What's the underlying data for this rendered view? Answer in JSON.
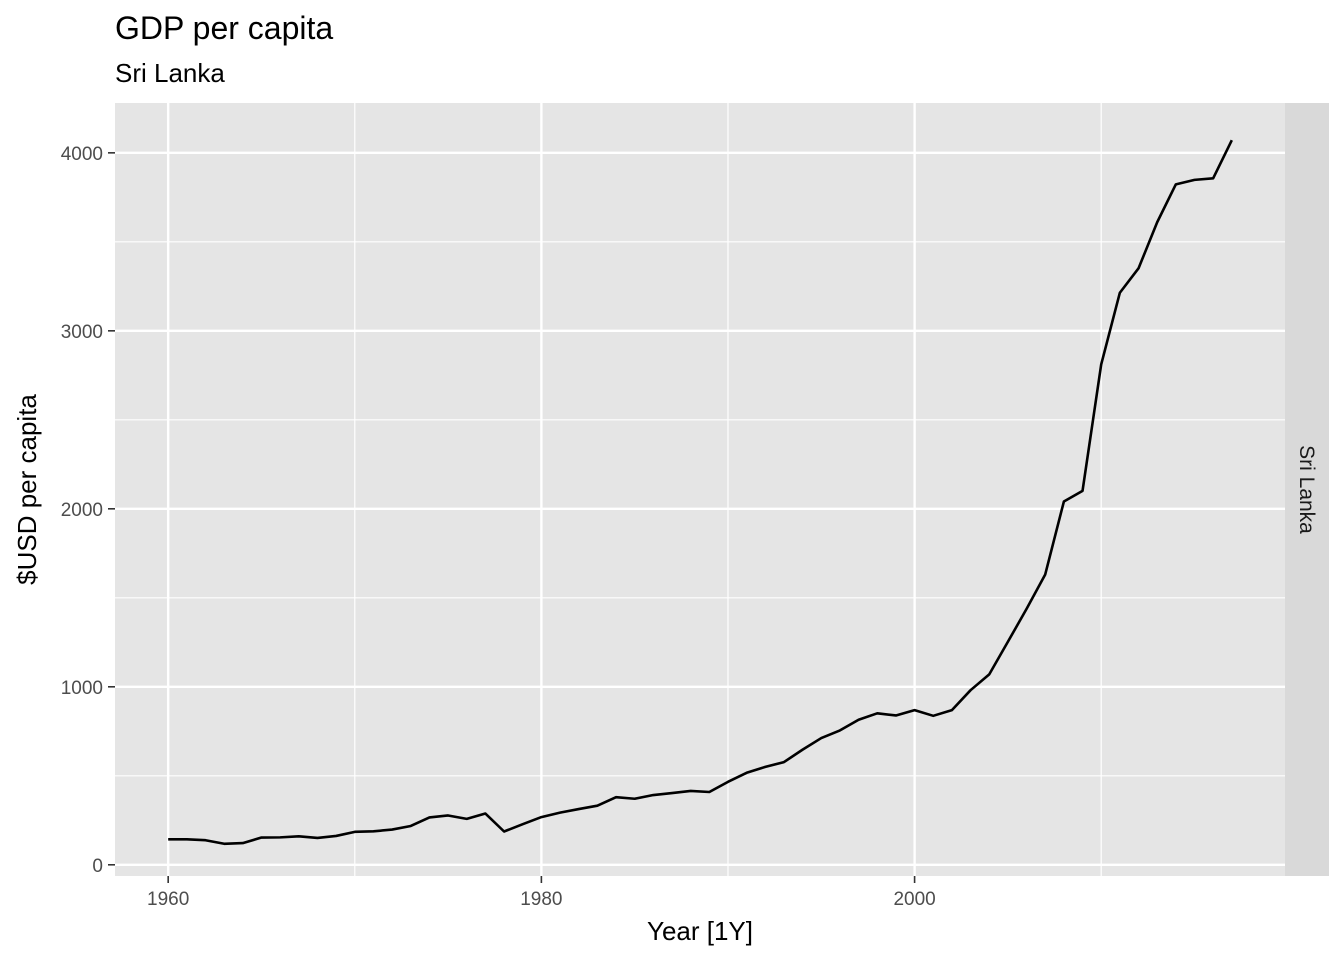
{
  "colors": {
    "panel_background": "#e5e5e5",
    "grid": "#ffffff",
    "strip_background": "#d9d9d9",
    "line": "#000000",
    "tick": "#333333"
  },
  "chart_data": {
    "type": "line",
    "title": "GDP per capita",
    "subtitle": "Sri Lanka",
    "xlabel": "Year [1Y]",
    "ylabel": "$USD per capita",
    "facet_label": "Sri Lanka",
    "xlim": [
      1957.15,
      2019.85
    ],
    "ylim": [
      -63,
      4280
    ],
    "x_ticks": [
      1960,
      1980,
      2000
    ],
    "x_tick_labels": [
      "1960",
      "1980",
      "2000"
    ],
    "x_minor_ticks": [
      1970,
      1990,
      2010
    ],
    "y_ticks": [
      0,
      1000,
      2000,
      3000,
      4000
    ],
    "y_tick_labels": [
      "0",
      "1000",
      "2000",
      "3000",
      "4000"
    ],
    "y_minor_ticks": [
      500,
      1500,
      2500,
      3500
    ],
    "grid": true,
    "legend": "none",
    "series": [
      {
        "x": [
          1960,
          1961,
          1962,
          1963,
          1964,
          1965,
          1966,
          1967,
          1968,
          1969,
          1970,
          1971,
          1972,
          1973,
          1974,
          1975,
          1976,
          1977,
          1978,
          1979,
          1980,
          1981,
          1982,
          1983,
          1984,
          1985,
          1986,
          1987,
          1988,
          1989,
          1990,
          1991,
          1992,
          1993,
          1994,
          1995,
          1996,
          1997,
          1998,
          1999,
          2000,
          2001,
          2002,
          2003,
          2004,
          2005,
          2006,
          2007,
          2008,
          2009,
          2010,
          2011,
          2012,
          2013,
          2014,
          2015,
          2016,
          2017
        ],
        "values": [
          143,
          143,
          138,
          118,
          122,
          153,
          154,
          160,
          151,
          162,
          185,
          188,
          198,
          218,
          266,
          277,
          258,
          288,
          187,
          228,
          268,
          293,
          313,
          332,
          380,
          371,
          392,
          403,
          415,
          409,
          466,
          517,
          550,
          577,
          647,
          712,
          755,
          815,
          851,
          839,
          869,
          837,
          869,
          981,
          1070,
          1253,
          1438,
          1631,
          2041,
          2101,
          2811,
          3214,
          3351,
          3610,
          3823,
          3848,
          3857,
          4071
        ]
      }
    ]
  }
}
